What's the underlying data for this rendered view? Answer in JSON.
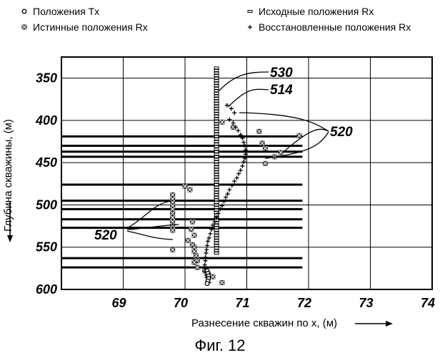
{
  "chart_data": {
    "type": "scatter",
    "xlabel": "Разнесение скважин по x, (м)",
    "ylabel": "Глубина скважины, (м)",
    "caption": "Фиг. 12",
    "xlim": [
      68,
      74
    ],
    "ylim": [
      600,
      325
    ],
    "y_inverted": true,
    "grid": true,
    "legend_position": "top",
    "xticks": [
      "69",
      "70",
      "71",
      "72",
      "73",
      "74"
    ],
    "yticks": [
      "350",
      "400",
      "450",
      "500",
      "550",
      "600"
    ],
    "legend": [
      {
        "label": "Положения Tx",
        "marker": "circle"
      },
      {
        "label": "Исходные положения Rx",
        "marker": "square"
      },
      {
        "label": "Истинные положения Rx",
        "marker": "x"
      },
      {
        "label": "Восстановленные положения Rx",
        "marker": "plus"
      }
    ],
    "annotations": [
      {
        "text": "530",
        "target": [
          70.55,
          365
        ]
      },
      {
        "text": "514",
        "target": [
          70.7,
          384
        ]
      },
      {
        "text": "520",
        "target": "upper horizontal line group"
      },
      {
        "text": "520",
        "target": "lower horizontal line group"
      }
    ],
    "horizontal_lines": [
      {
        "y": 419,
        "x": [
          68,
          71.9
        ]
      },
      {
        "y": 430,
        "x": [
          68,
          71.9
        ]
      },
      {
        "y": 437,
        "x": [
          68,
          71.9
        ]
      },
      {
        "y": 443,
        "x": [
          68,
          71.9
        ]
      },
      {
        "y": 476,
        "x": [
          68,
          71.9
        ]
      },
      {
        "y": 495,
        "x": [
          68,
          71.9
        ]
      },
      {
        "y": 505,
        "x": [
          68,
          71.9
        ]
      },
      {
        "y": 517,
        "x": [
          68,
          71.9
        ]
      },
      {
        "y": 527,
        "x": [
          68,
          71.9
        ]
      },
      {
        "y": 563,
        "x": [
          68,
          71.9
        ]
      },
      {
        "y": 574,
        "x": [
          68,
          71.9
        ]
      }
    ],
    "series": [
      {
        "name": "Исходные положения Rx",
        "marker": "square",
        "x": [
          70.51,
          70.51,
          70.51,
          70.51,
          70.51,
          70.51,
          70.51,
          70.51,
          70.51,
          70.51,
          70.51,
          70.51,
          70.51,
          70.51,
          70.51,
          70.51,
          70.51,
          70.51,
          70.51,
          70.51,
          70.51,
          70.51,
          70.51,
          70.51,
          70.51,
          70.51,
          70.51,
          70.51,
          70.51,
          70.51,
          70.51,
          70.51,
          70.51,
          70.51,
          70.51,
          70.51,
          70.51,
          70.51,
          70.51,
          70.51,
          70.51,
          70.51,
          70.51,
          70.51,
          70.51,
          70.51,
          70.51,
          70.51,
          70.51,
          70.51,
          70.51,
          70.51,
          70.51,
          70.51,
          70.51,
          70.51,
          70.51,
          70.51,
          70.51,
          70.51,
          70.51,
          70.51,
          70.51,
          70.51,
          70.51,
          70.51,
          70.51,
          70.51,
          70.51,
          70.51,
          70.51,
          70.51,
          70.51,
          70.51
        ],
        "y": [
          338,
          341,
          344,
          347,
          350,
          353,
          356,
          359,
          362,
          365,
          368,
          371,
          374,
          377,
          380,
          383,
          386,
          389,
          392,
          395,
          398,
          401,
          404,
          407,
          410,
          413,
          416,
          419,
          422,
          425,
          428,
          431,
          434,
          437,
          440,
          443,
          446,
          449,
          452,
          455,
          458,
          461,
          464,
          467,
          470,
          473,
          476,
          479,
          482,
          485,
          488,
          491,
          494,
          497,
          500,
          503,
          506,
          509,
          512,
          515,
          518,
          521,
          524,
          527,
          530,
          533,
          536,
          539,
          542,
          545,
          548,
          551,
          554,
          557
        ]
      },
      {
        "name": "Истинные положения Rx",
        "marker": "x",
        "x": [
          70.6,
          70.78,
          71.2,
          71.25,
          71.3,
          71.45,
          71.55,
          71.85,
          71.3,
          69.8,
          69.8,
          69.8,
          69.8,
          69.8,
          69.8,
          69.8,
          69.8,
          69.8,
          69.8,
          69.8,
          70.0,
          70.08,
          70.05,
          70.15,
          70.15,
          70.18,
          70.2,
          70.15,
          70.12,
          70.1,
          70.12,
          70.15,
          70.2,
          70.32,
          70.38,
          70.45,
          70.6
        ],
        "y": [
          402,
          408,
          413,
          427,
          433,
          443,
          438,
          418,
          451,
          488,
          493,
          497,
          501,
          505,
          510,
          515,
          520,
          524,
          530,
          553,
          478,
          482,
          542,
          536,
          550,
          560,
          566,
          568,
          520,
          529,
          547,
          555,
          574,
          578,
          582,
          585,
          592
        ]
      },
      {
        "name": "Восстановленные положения Rx",
        "marker": "plus",
        "x": [
          70.68,
          70.75,
          70.8,
          70.72,
          70.78,
          70.82,
          70.86,
          70.9,
          70.93,
          70.95,
          70.97,
          70.98,
          70.98,
          70.97,
          70.95,
          70.93,
          70.9,
          70.87,
          70.84,
          70.8,
          70.76,
          70.72,
          70.69,
          70.66,
          70.63,
          70.6,
          70.57,
          70.54,
          70.51,
          70.48,
          70.45,
          70.43,
          70.41,
          70.39,
          70.37,
          70.36,
          70.35,
          70.34,
          70.33,
          70.33,
          70.32,
          70.32,
          70.33,
          70.34,
          70.35,
          70.37,
          70.39
        ],
        "y": [
          382,
          386,
          391,
          399,
          403,
          408,
          412,
          417,
          421,
          426,
          430,
          435,
          440,
          445,
          449,
          454,
          459,
          463,
          468,
          472,
          477,
          482,
          487,
          491,
          496,
          501,
          505,
          510,
          515,
          520,
          524,
          529,
          534,
          539,
          543,
          548,
          553,
          557,
          562,
          566,
          571,
          575,
          579,
          583,
          586,
          589,
          592
        ]
      },
      {
        "name": "Положения Tx",
        "marker": "circle",
        "x": [
          70.36,
          70.37,
          70.38,
          70.38,
          70.37,
          70.36
        ],
        "y": [
          578,
          581,
          584,
          587,
          590,
          593
        ]
      }
    ]
  }
}
